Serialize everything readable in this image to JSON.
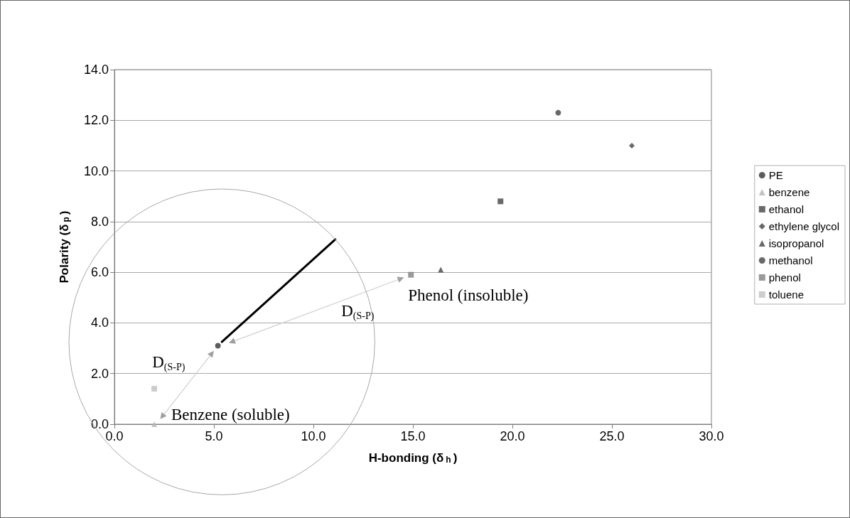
{
  "chart_data": {
    "type": "scatter",
    "xlabel": "H-bonding (δ$_{h}$)",
    "ylabel": "Polarity (δ$_{p}$)",
    "xlim": [
      0,
      30
    ],
    "ylim": [
      0,
      14
    ],
    "xticks": [
      {
        "value": 0,
        "label": "0.0"
      },
      {
        "value": 5,
        "label": "5.0"
      },
      {
        "value": 10,
        "label": "10.0"
      },
      {
        "value": 15,
        "label": "15.0"
      },
      {
        "value": 20,
        "label": "20.0"
      },
      {
        "value": 25,
        "label": "25.0"
      },
      {
        "value": 30,
        "label": "30.0"
      }
    ],
    "yticks": [
      {
        "value": 0,
        "label": "0.0"
      },
      {
        "value": 2,
        "label": "2.0"
      },
      {
        "value": 4,
        "label": "4.0"
      },
      {
        "value": 6,
        "label": "6.0"
      },
      {
        "value": 8,
        "label": "8.0"
      },
      {
        "value": 10,
        "label": "10.0"
      },
      {
        "value": 12,
        "label": "12.0"
      },
      {
        "value": 14,
        "label": "14.0"
      }
    ],
    "grid": "y",
    "legend": "right",
    "series": [
      {
        "name": "PE",
        "color": "#333333",
        "marker": "circle",
        "x": [
          5.2
        ],
        "values": [
          3.1
        ]
      },
      {
        "name": "benzene",
        "color": "#b4b4b4",
        "marker": "triangle",
        "x": [
          2.0
        ],
        "values": [
          0.0
        ]
      },
      {
        "name": "ethanol",
        "color": "#444444",
        "marker": "square",
        "x": [
          19.4
        ],
        "values": [
          8.8
        ]
      },
      {
        "name": "ethylene glycol",
        "color": "#444444",
        "marker": "diamond",
        "x": [
          26.0
        ],
        "values": [
          11.0
        ]
      },
      {
        "name": "isopropanol",
        "color": "#444444",
        "marker": "triangle",
        "x": [
          16.4
        ],
        "values": [
          6.1
        ]
      },
      {
        "name": "methanol",
        "color": "#444444",
        "marker": "circle",
        "x": [
          22.3
        ],
        "values": [
          12.3
        ]
      },
      {
        "name": "phenol",
        "color": "#808080",
        "marker": "square",
        "x": [
          14.9
        ],
        "values": [
          5.9
        ]
      },
      {
        "name": "toluene",
        "color": "#c0c0c0",
        "marker": "square",
        "x": [
          2.0
        ],
        "values": [
          1.4
        ]
      },
      {
        "type": "line",
        "color": "#000000",
        "x": [
          5.4,
          11.1
        ],
        "values": [
          3.25,
          7.3
        ]
      },
      {
        "type": "line",
        "color": "#a0a0a0",
        "marker": "triangle",
        "x": [
          2.4,
          4.9
        ],
        "values": [
          0.3,
          2.8
        ]
      },
      {
        "type": "line",
        "color": "#a0a0a0",
        "marker": "triangle",
        "x": [
          14.4,
          5.9
        ],
        "values": [
          5.75,
          3.25
        ]
      }
    ],
    "annotations": [
      {
        "text": "D$_{(S-P)}$",
        "x": 4.9,
        "y": 2.8
      },
      {
        "text": "D$_{(S-P)}$",
        "x": 14.4,
        "y": 5.75
      },
      {
        "text": "Benzene (soluble)",
        "x": 2.0,
        "y": 0.0
      },
      {
        "text": "Phenol (insoluble)",
        "x": 14.9,
        "y": 5.9
      }
    ]
  }
}
